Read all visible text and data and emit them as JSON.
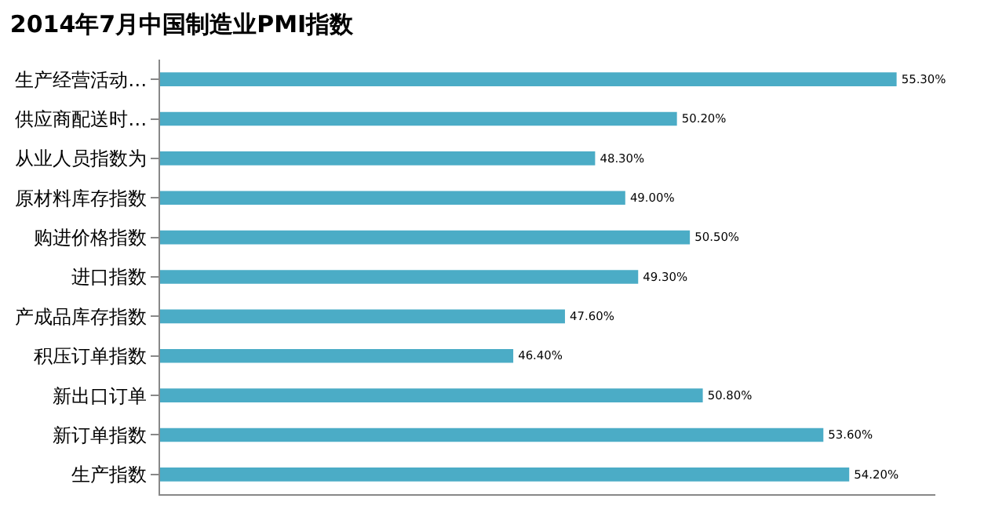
{
  "chart_data": {
    "type": "bar",
    "orientation": "horizontal",
    "title": "2014年7月中国制造业PMI指数",
    "categories": [
      "生产经营活动…",
      "供应商配送时…",
      "从业人员指数为",
      "原材料库存指数",
      "购进价格指数",
      "进口指数",
      "产成品库存指数",
      "积压订单指数",
      "新出口订单",
      "新订单指数",
      "生产指数"
    ],
    "values": [
      55.3,
      50.2,
      48.3,
      49.0,
      50.5,
      49.3,
      47.6,
      46.4,
      50.8,
      53.6,
      54.2
    ],
    "value_labels": [
      "55.30%",
      "50.20%",
      "48.30%",
      "49.00%",
      "50.50%",
      "49.30%",
      "47.60%",
      "46.40%",
      "50.80%",
      "53.60%",
      "54.20%"
    ],
    "color": "#4bacc6",
    "xlim": [
      38.2,
      56.2
    ],
    "tick_labels": "y"
  }
}
